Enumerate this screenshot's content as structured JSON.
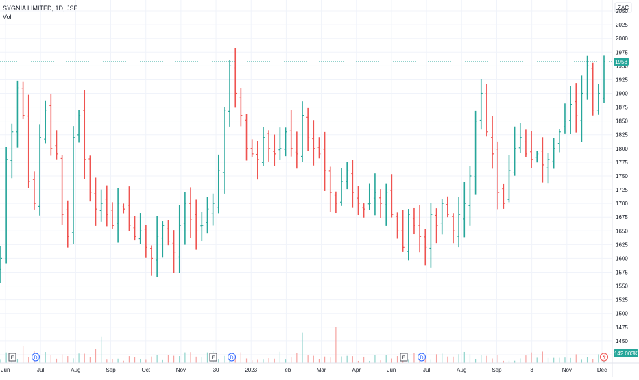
{
  "header": {
    "symbol_line": "SYGNIA LIMITED, 1D, JSE",
    "volume_label": "Vol"
  },
  "currency_button": "ZAC",
  "colors": {
    "up": "#26a69a",
    "down": "#ef5350",
    "grid": "#f0f3fa",
    "axis_text": "#131722",
    "current_line": "#26a69a",
    "volume_up": "#8fd3cb",
    "volume_down": "#f5a3a1"
  },
  "chart_data": {
    "type": "bar",
    "style": "ohlc",
    "y_axis": {
      "range": [
        1410,
        2070
      ],
      "ticks": [
        2050,
        2025,
        2000,
        1975,
        1950,
        1925,
        1900,
        1875,
        1850,
        1825,
        1800,
        1775,
        1750,
        1725,
        1700,
        1675,
        1650,
        1625,
        1600,
        1575,
        1550,
        1525,
        1500,
        1475,
        1450,
        1425
      ]
    },
    "x_axis": {
      "ticks": [
        "Jun",
        "Jul",
        "Aug",
        "Sep",
        "Oct",
        "Nov",
        "30",
        "2023",
        "Feb",
        "Mar",
        "Apr",
        "Jun",
        "Jul",
        "Aug",
        "Sep",
        "3",
        "Nov",
        "Dec"
      ]
    },
    "current_price": 1958,
    "last_volume_label": "142.003K",
    "events": [
      {
        "type": "E",
        "near_tick": "Jun"
      },
      {
        "type": "D",
        "near_tick": "Jun"
      },
      {
        "type": "E",
        "near_tick": "30"
      },
      {
        "type": "D",
        "near_tick": "30"
      },
      {
        "type": "E",
        "near_tick": "Jun"
      },
      {
        "type": "D",
        "near_tick": "Jul"
      }
    ],
    "close_series_approx": [
      1600,
      1780,
      1830,
      1910,
      1860,
      1740,
      1700,
      1820,
      1870,
      1800,
      1790,
      1680,
      1640,
      1820,
      1860,
      1780,
      1720,
      1690,
      1700,
      1680,
      1660,
      1700,
      1690,
      1660,
      1640,
      1650,
      1620,
      1600,
      1640,
      1660,
      1630,
      1610,
      1660,
      1700,
      1670,
      1650,
      1660,
      1690,
      1700,
      1760,
      1870,
      1950,
      1900,
      1860,
      1800,
      1790,
      1780,
      1820,
      1800,
      1790,
      1800,
      1830,
      1800,
      1790,
      1860,
      1820,
      1800,
      1790,
      1760,
      1720,
      1700,
      1740,
      1760,
      1720,
      1700,
      1690,
      1700,
      1720,
      1700,
      1720,
      1680,
      1650,
      1620,
      1680,
      1660,
      1640,
      1620,
      1680,
      1660,
      1700,
      1680,
      1650,
      1680,
      1700,
      1750,
      1850,
      1900,
      1830,
      1790,
      1720,
      1700,
      1760,
      1800,
      1820,
      1790,
      1780,
      1790,
      1770,
      1780,
      1800,
      1830,
      1850,
      1880,
      1860,
      1900,
      1950,
      1870,
      1900,
      1958
    ]
  }
}
